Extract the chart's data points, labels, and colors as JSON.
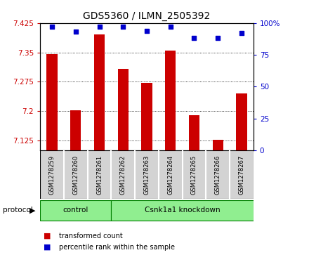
{
  "title": "GDS5360 / ILMN_2505392",
  "samples": [
    "GSM1278259",
    "GSM1278260",
    "GSM1278261",
    "GSM1278262",
    "GSM1278263",
    "GSM1278264",
    "GSM1278265",
    "GSM1278266",
    "GSM1278267"
  ],
  "bar_values": [
    7.345,
    7.202,
    7.395,
    7.308,
    7.272,
    7.355,
    7.19,
    7.128,
    7.245
  ],
  "dot_values": [
    97,
    93,
    97,
    97,
    94,
    97,
    88,
    88,
    92
  ],
  "ylim_left": [
    7.1,
    7.425
  ],
  "ylim_right": [
    0,
    100
  ],
  "yticks_left": [
    7.125,
    7.2,
    7.275,
    7.35,
    7.425
  ],
  "yticks_right": [
    0,
    25,
    50,
    75,
    100
  ],
  "ytick_labels_left": [
    "7.125",
    "7.2",
    "7.275",
    "7.35",
    "7.425"
  ],
  "ytick_labels_right": [
    "0",
    "25",
    "50",
    "75",
    "100%"
  ],
  "bar_color": "#cc0000",
  "dot_color": "#0000cc",
  "bar_bottom": 7.1,
  "protocol_groups": [
    {
      "label": "control",
      "start": 0,
      "end": 3
    },
    {
      "label": "Csnk1a1 knockdown",
      "start": 3,
      "end": 9
    }
  ],
  "protocol_label": "protocol",
  "legend_bar_label": "transformed count",
  "legend_dot_label": "percentile rank within the sample",
  "plot_bg": "#ffffff",
  "green_color": "#90ee90",
  "group_box_color": "#d3d3d3"
}
